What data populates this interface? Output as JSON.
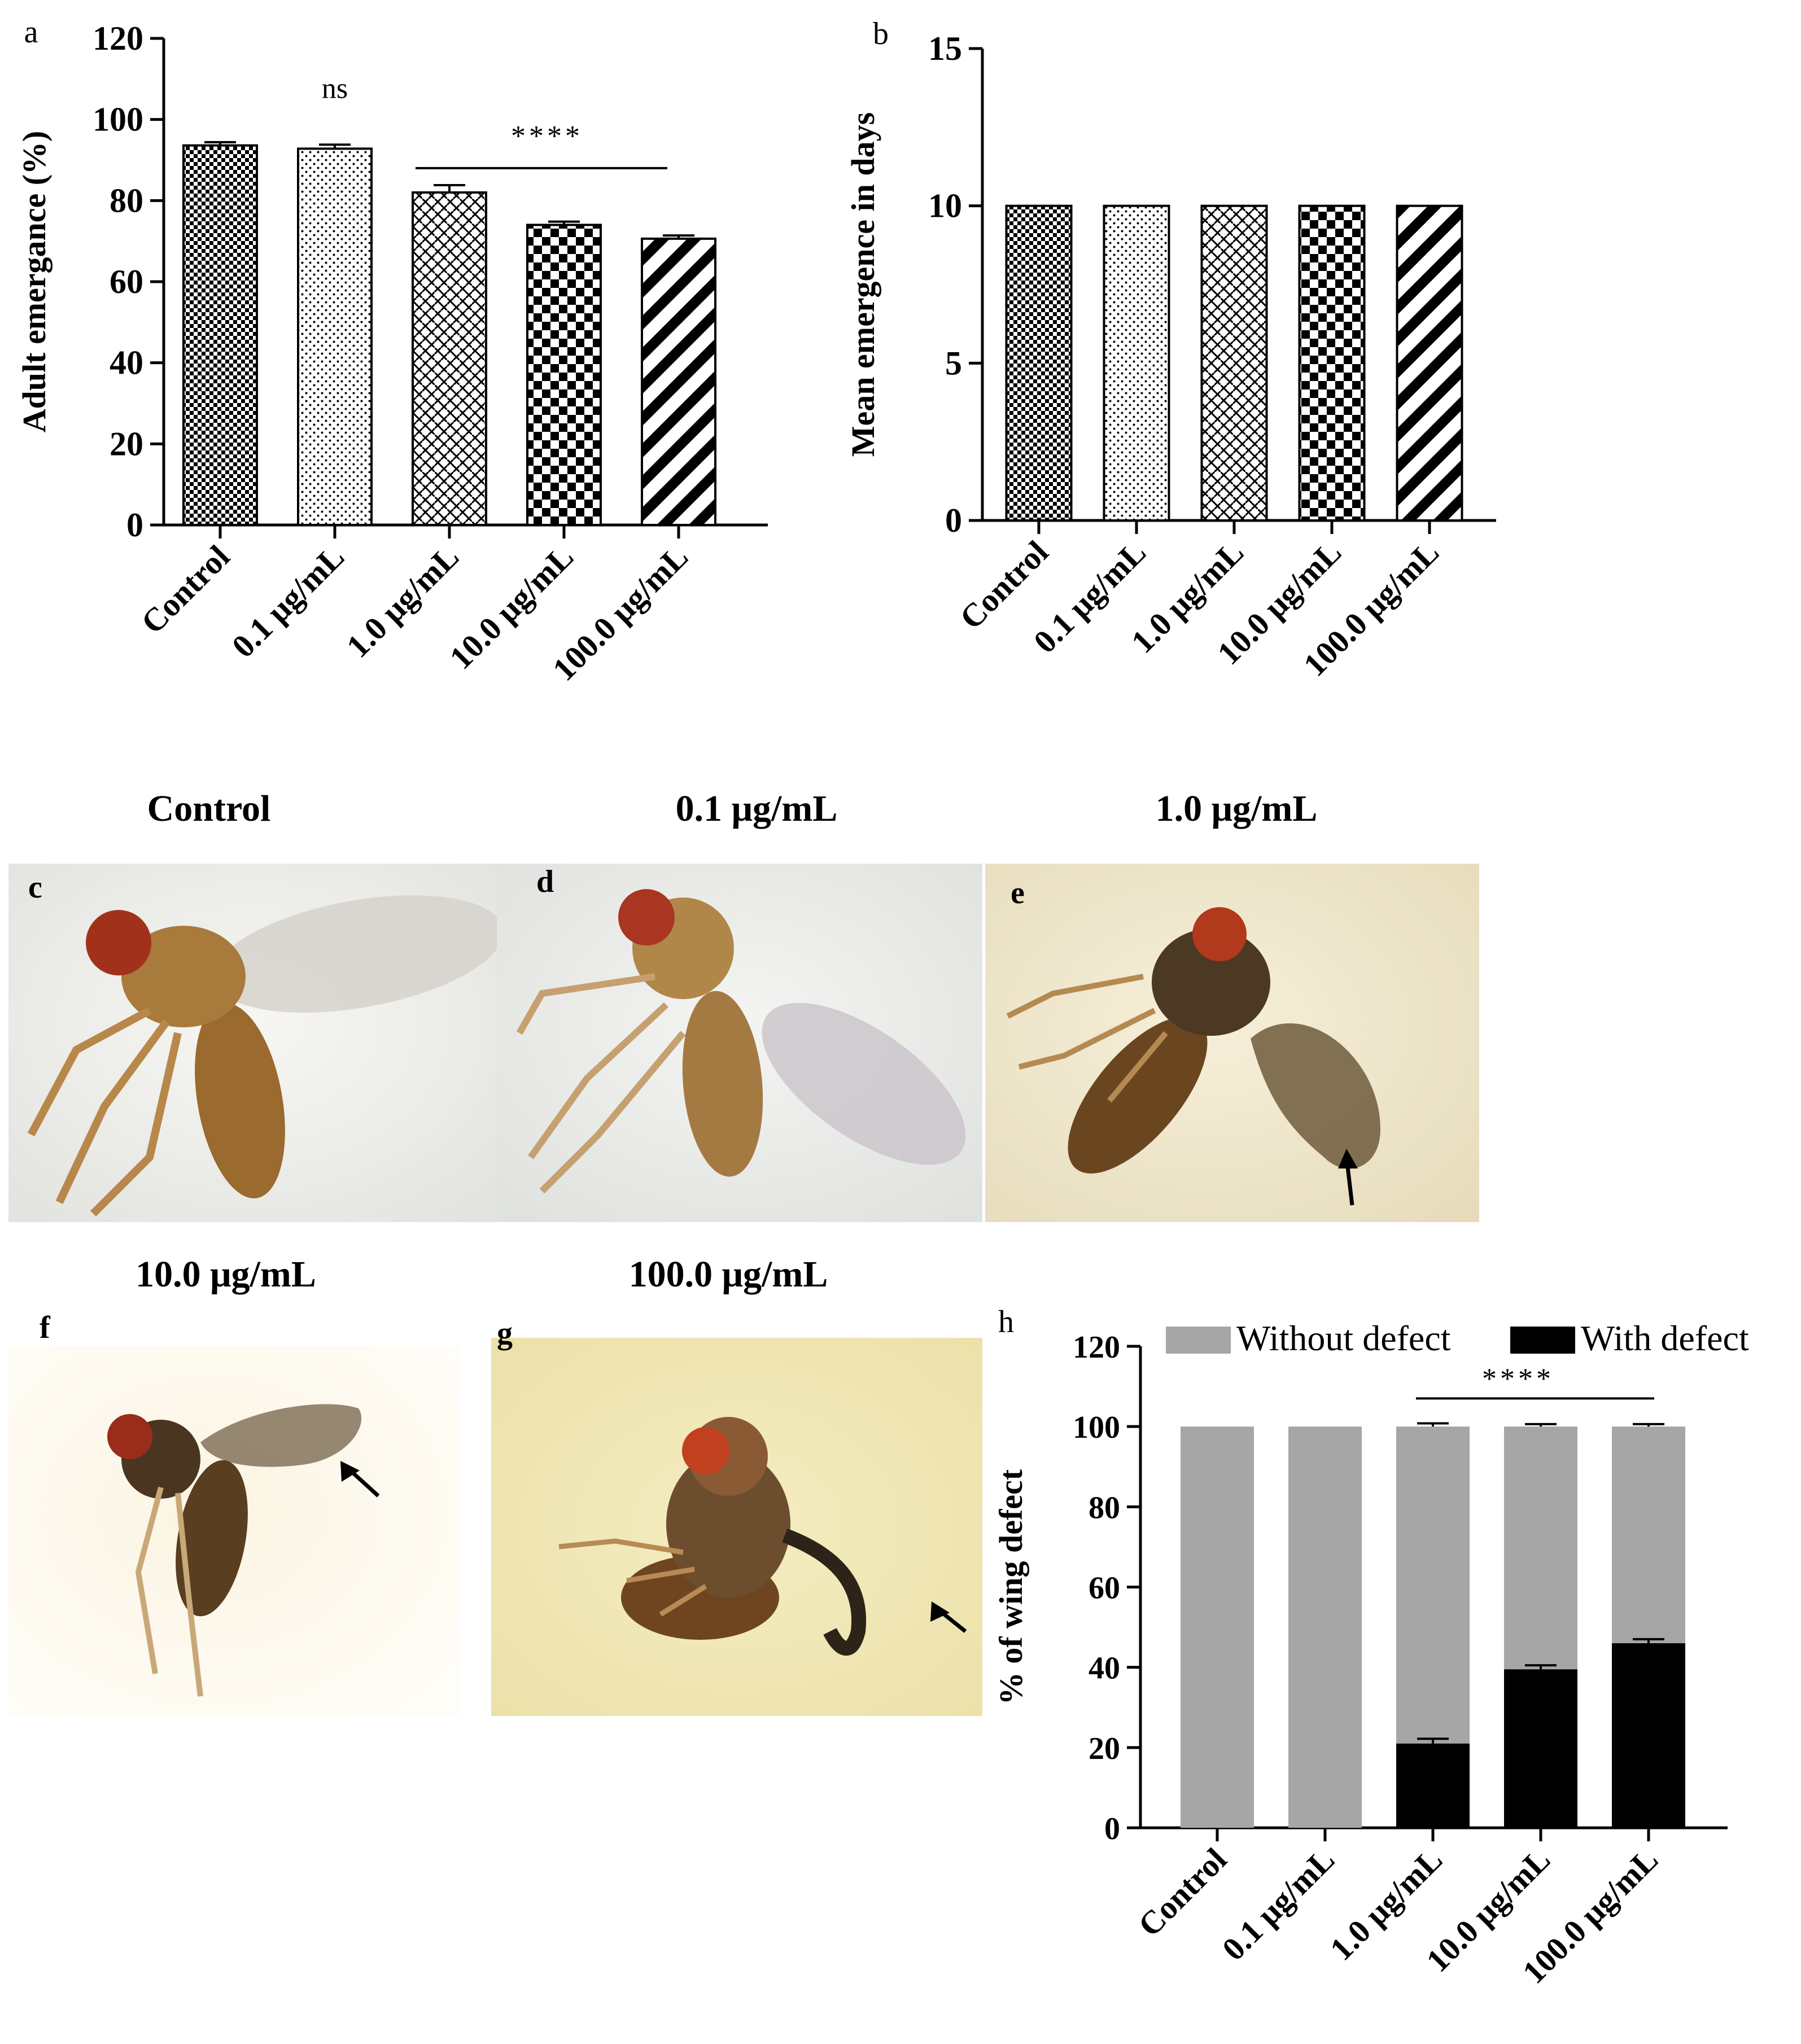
{
  "colors": {
    "ink": "#000000",
    "gray": "#a6a6a6",
    "paper": "#ffffff"
  },
  "chart_data": [
    {
      "panel": "a",
      "type": "bar",
      "categories": [
        "Control",
        "0.1 μg/mL",
        "1.0 μg/mL",
        "10.0 μg/mL",
        "100.0 μg/mL"
      ],
      "values": [
        93.6,
        92.8,
        82.0,
        74.0,
        70.6
      ],
      "errors": [
        0.8,
        1.0,
        1.8,
        0.8,
        0.8
      ],
      "patterns": [
        "check-small",
        "dots",
        "weave",
        "checker-large",
        "diag-stripes"
      ],
      "ylabel": "Adult emergance (%)",
      "ylim": [
        0,
        120
      ],
      "yticks": [
        0,
        20,
        40,
        60,
        80,
        100,
        120
      ],
      "annotations": {
        "ns_label": "ns",
        "stars_label": "****"
      }
    },
    {
      "panel": "b",
      "type": "bar",
      "categories": [
        "Control",
        "0.1 μg/mL",
        "1.0 μg/mL",
        "10.0 μg/mL",
        "100.0 μg/mL"
      ],
      "values": [
        10,
        10,
        10,
        10,
        10
      ],
      "patterns": [
        "check-small",
        "dots",
        "weave",
        "checker-large",
        "diag-stripes"
      ],
      "ylabel": "Mean emergence in days",
      "ylim": [
        0,
        15
      ],
      "yticks": [
        0,
        5,
        10,
        15
      ]
    },
    {
      "panel": "h",
      "type": "bar",
      "stacked": true,
      "categories": [
        "Control",
        "0.1 μg/mL",
        "1.0 μg/mL",
        "10.0 μg/mL",
        "100.0 μg/mL"
      ],
      "series": [
        {
          "name": "With defect",
          "values": [
            0,
            0,
            21,
            39.5,
            46
          ],
          "errors": [
            0,
            0,
            1.2,
            1.0,
            1.0
          ]
        },
        {
          "name": "Without defect",
          "values": [
            100,
            100,
            79,
            60.5,
            54
          ],
          "errors": [
            0,
            0,
            0.8,
            0.6,
            0.6
          ]
        }
      ],
      "ylabel": "% of wing defect",
      "ylim": [
        0,
        120
      ],
      "yticks": [
        0,
        20,
        40,
        60,
        80,
        100,
        120
      ],
      "legend": [
        "Without defect",
        "With defect"
      ],
      "legend_position": "top",
      "annotations": {
        "stars_label": "****"
      }
    }
  ],
  "panel_letters": {
    "a": "a",
    "b": "b",
    "c": "c",
    "d": "d",
    "e": "e",
    "f": "f",
    "g": "g",
    "h": "h"
  },
  "photo_titles": {
    "c": "Control",
    "d": "0.1 μg/mL",
    "e": "1.0 μg/mL",
    "f": "10.0 μg/mL",
    "g": "100.0 μg/mL"
  },
  "photos": {
    "c": "fly, normal wings",
    "d": "fly, normal wings",
    "e": "fly, wing defect with arrow",
    "f": "fly, wing defect with arrow",
    "g": "fly, wing defect with arrow"
  }
}
